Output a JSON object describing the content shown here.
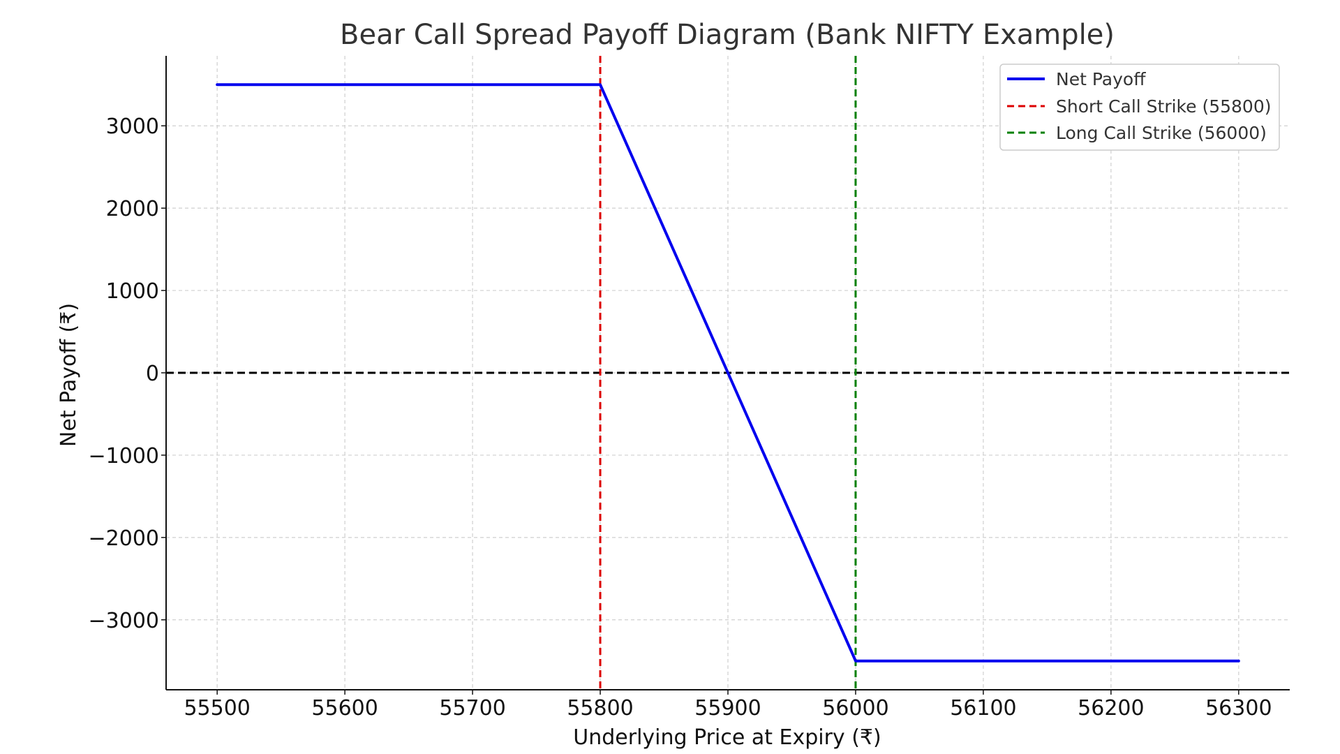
{
  "chart_data": {
    "type": "line",
    "title": "Bear Call Spread Payoff Diagram (Bank NIFTY Example)",
    "xlabel": "Underlying Price at Expiry (₹)",
    "ylabel": "Net Payoff (₹)",
    "xlim": [
      55460,
      56340
    ],
    "ylim": [
      -3850,
      3850
    ],
    "x_ticks": [
      55500,
      55600,
      55700,
      55800,
      55900,
      56000,
      56100,
      56200,
      56300
    ],
    "x_tick_labels": [
      "55500",
      "55600",
      "55700",
      "55800",
      "55900",
      "56000",
      "56100",
      "56200",
      "56300"
    ],
    "y_ticks": [
      -3000,
      -2000,
      -1000,
      0,
      1000,
      2000,
      3000
    ],
    "y_tick_labels": [
      "−3000",
      "−2000",
      "−1000",
      "0",
      "1000",
      "2000",
      "3000"
    ],
    "grid": true,
    "legend_position": "top-right",
    "series": [
      {
        "name": "Net Payoff",
        "color": "#0000ee",
        "style": "solid",
        "x": [
          55500,
          55800,
          55900,
          56000,
          56300
        ],
        "y": [
          3500,
          3500,
          0,
          -3500,
          -3500
        ]
      }
    ],
    "vlines": [
      {
        "name": "Short Call Strike (55800)",
        "x": 55800,
        "color": "#dd0000",
        "style": "dashed"
      },
      {
        "name": "Long Call Strike (56000)",
        "x": 56000,
        "color": "#008000",
        "style": "dashed"
      }
    ],
    "hlines": [
      {
        "y": 0,
        "color": "#000000",
        "style": "dashed"
      }
    ]
  }
}
